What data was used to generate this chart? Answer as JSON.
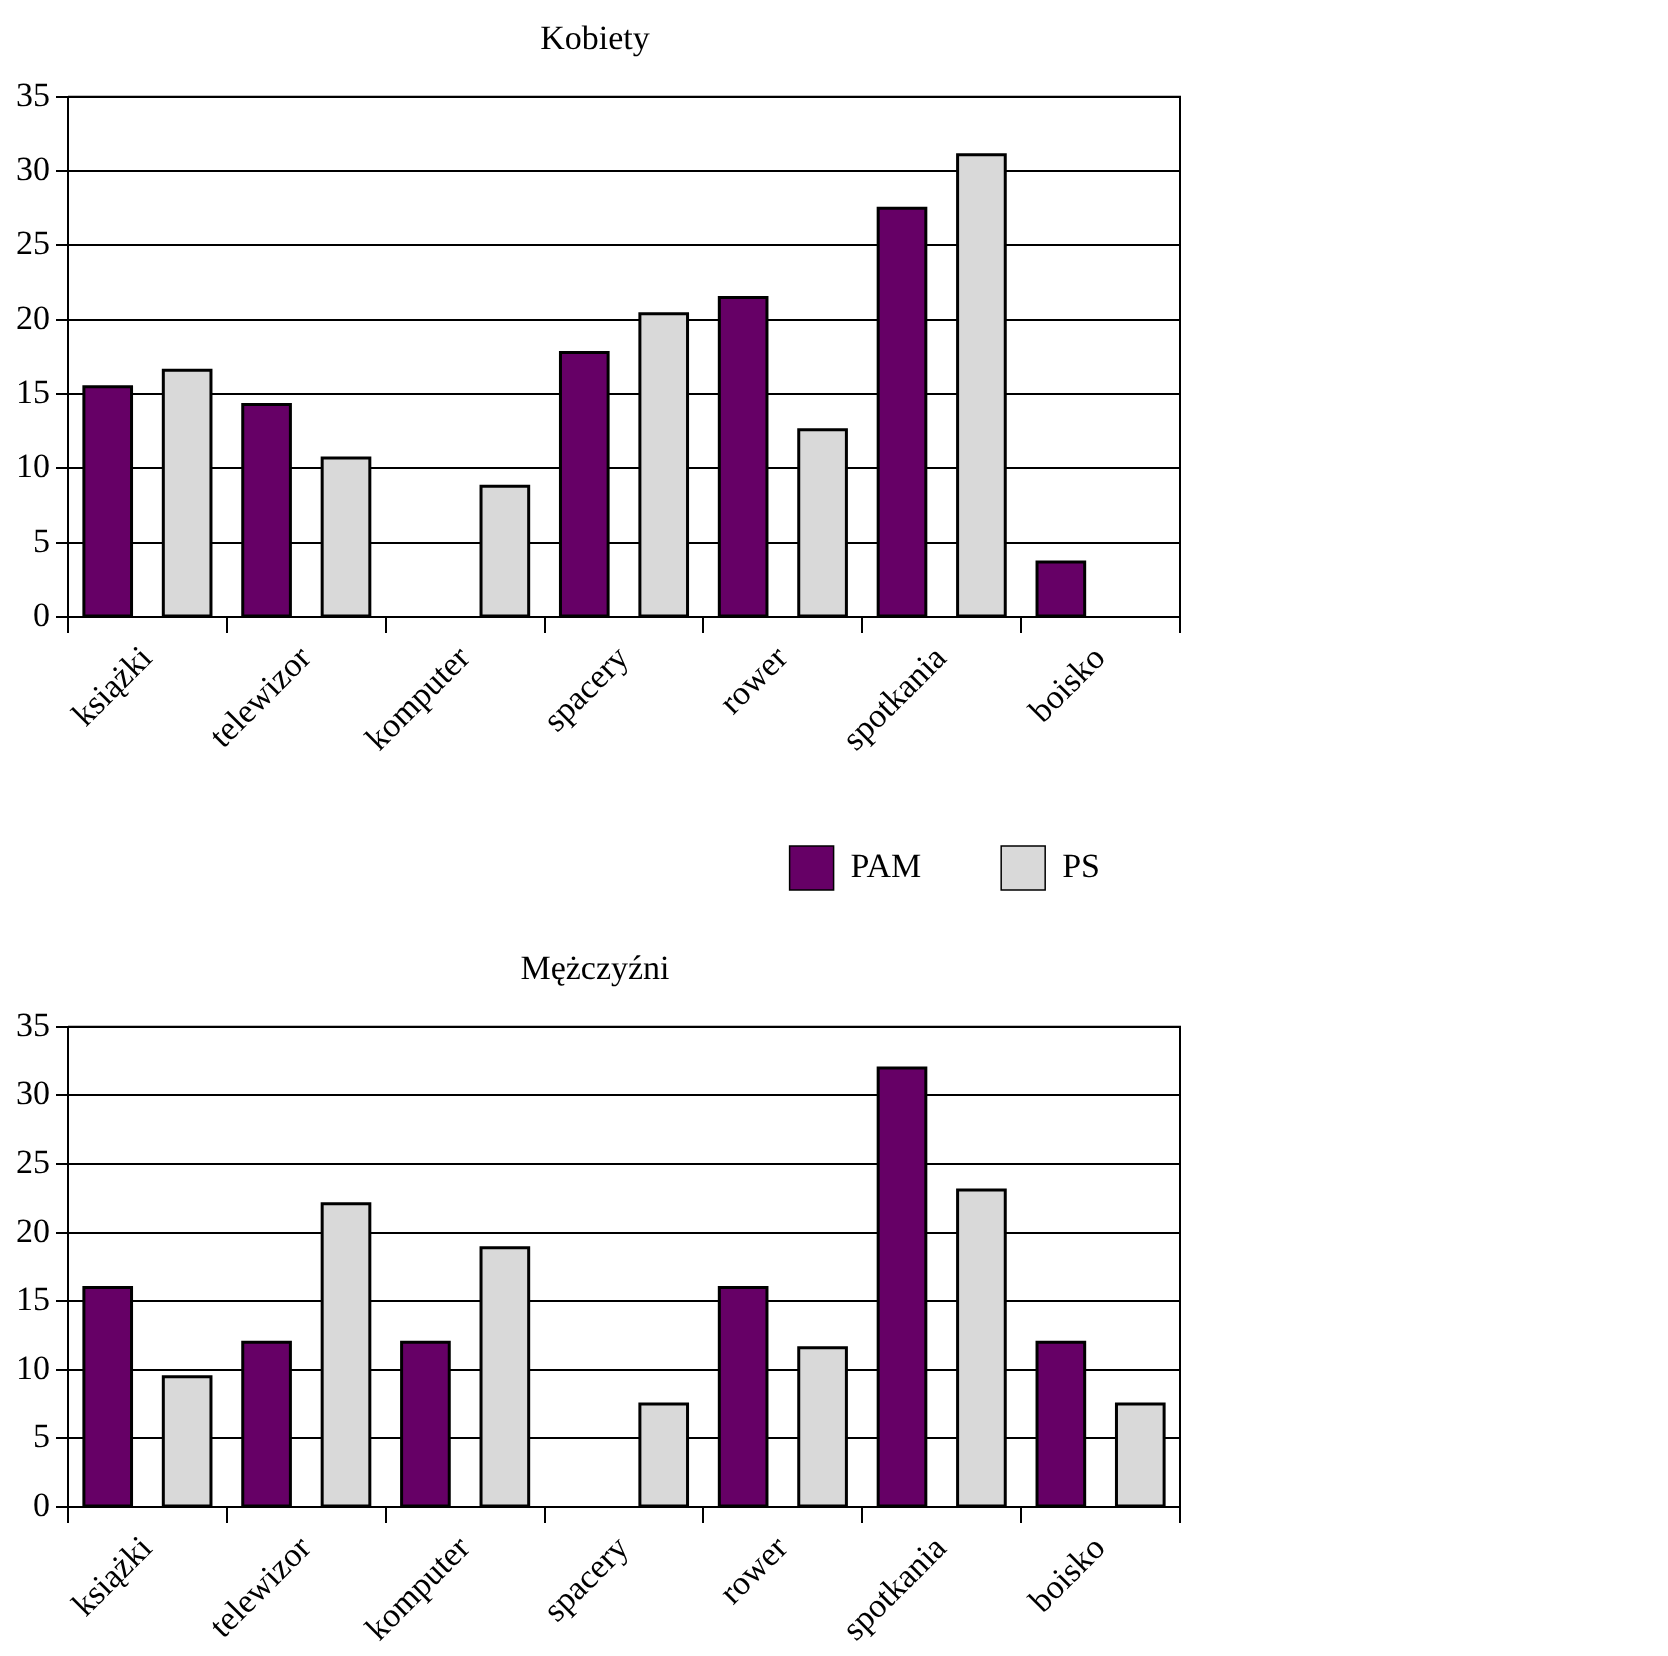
{
  "chart_data": [
    {
      "type": "bar",
      "title": "Kobiety",
      "categories": [
        "książki",
        "telewizor",
        "komputer",
        "spacery",
        "rower",
        "spotkania",
        "boisko"
      ],
      "series": [
        {
          "name": "PAM",
          "color": "#660066",
          "values": [
            15.5,
            14.3,
            null,
            17.8,
            21.5,
            27.5,
            3.7
          ]
        },
        {
          "name": "PS",
          "color": "#d9d9d9",
          "values": [
            16.6,
            10.7,
            8.8,
            20.4,
            12.6,
            31.1,
            null
          ]
        }
      ],
      "ylim": [
        0,
        35
      ],
      "yticks": [
        0,
        5,
        10,
        15,
        20,
        25,
        30,
        35
      ],
      "grid": "y",
      "legend": "bottom right"
    },
    {
      "type": "bar",
      "title": "Mężczyźni",
      "categories": [
        "książki",
        "telewizor",
        "komputer",
        "spacery",
        "rower",
        "spotkania",
        "boisko"
      ],
      "series": [
        {
          "color": "#660066",
          "values": [
            16,
            12,
            12,
            null,
            16,
            32,
            12
          ]
        },
        {
          "color": "#d9d9d9",
          "values": [
            9.5,
            22.1,
            18.9,
            7.5,
            11.6,
            23.1,
            7.5
          ]
        }
      ],
      "ylim": [
        0,
        35
      ],
      "yticks": [
        0,
        5,
        10,
        15,
        20,
        25,
        30,
        35
      ],
      "grid": "y"
    }
  ]
}
